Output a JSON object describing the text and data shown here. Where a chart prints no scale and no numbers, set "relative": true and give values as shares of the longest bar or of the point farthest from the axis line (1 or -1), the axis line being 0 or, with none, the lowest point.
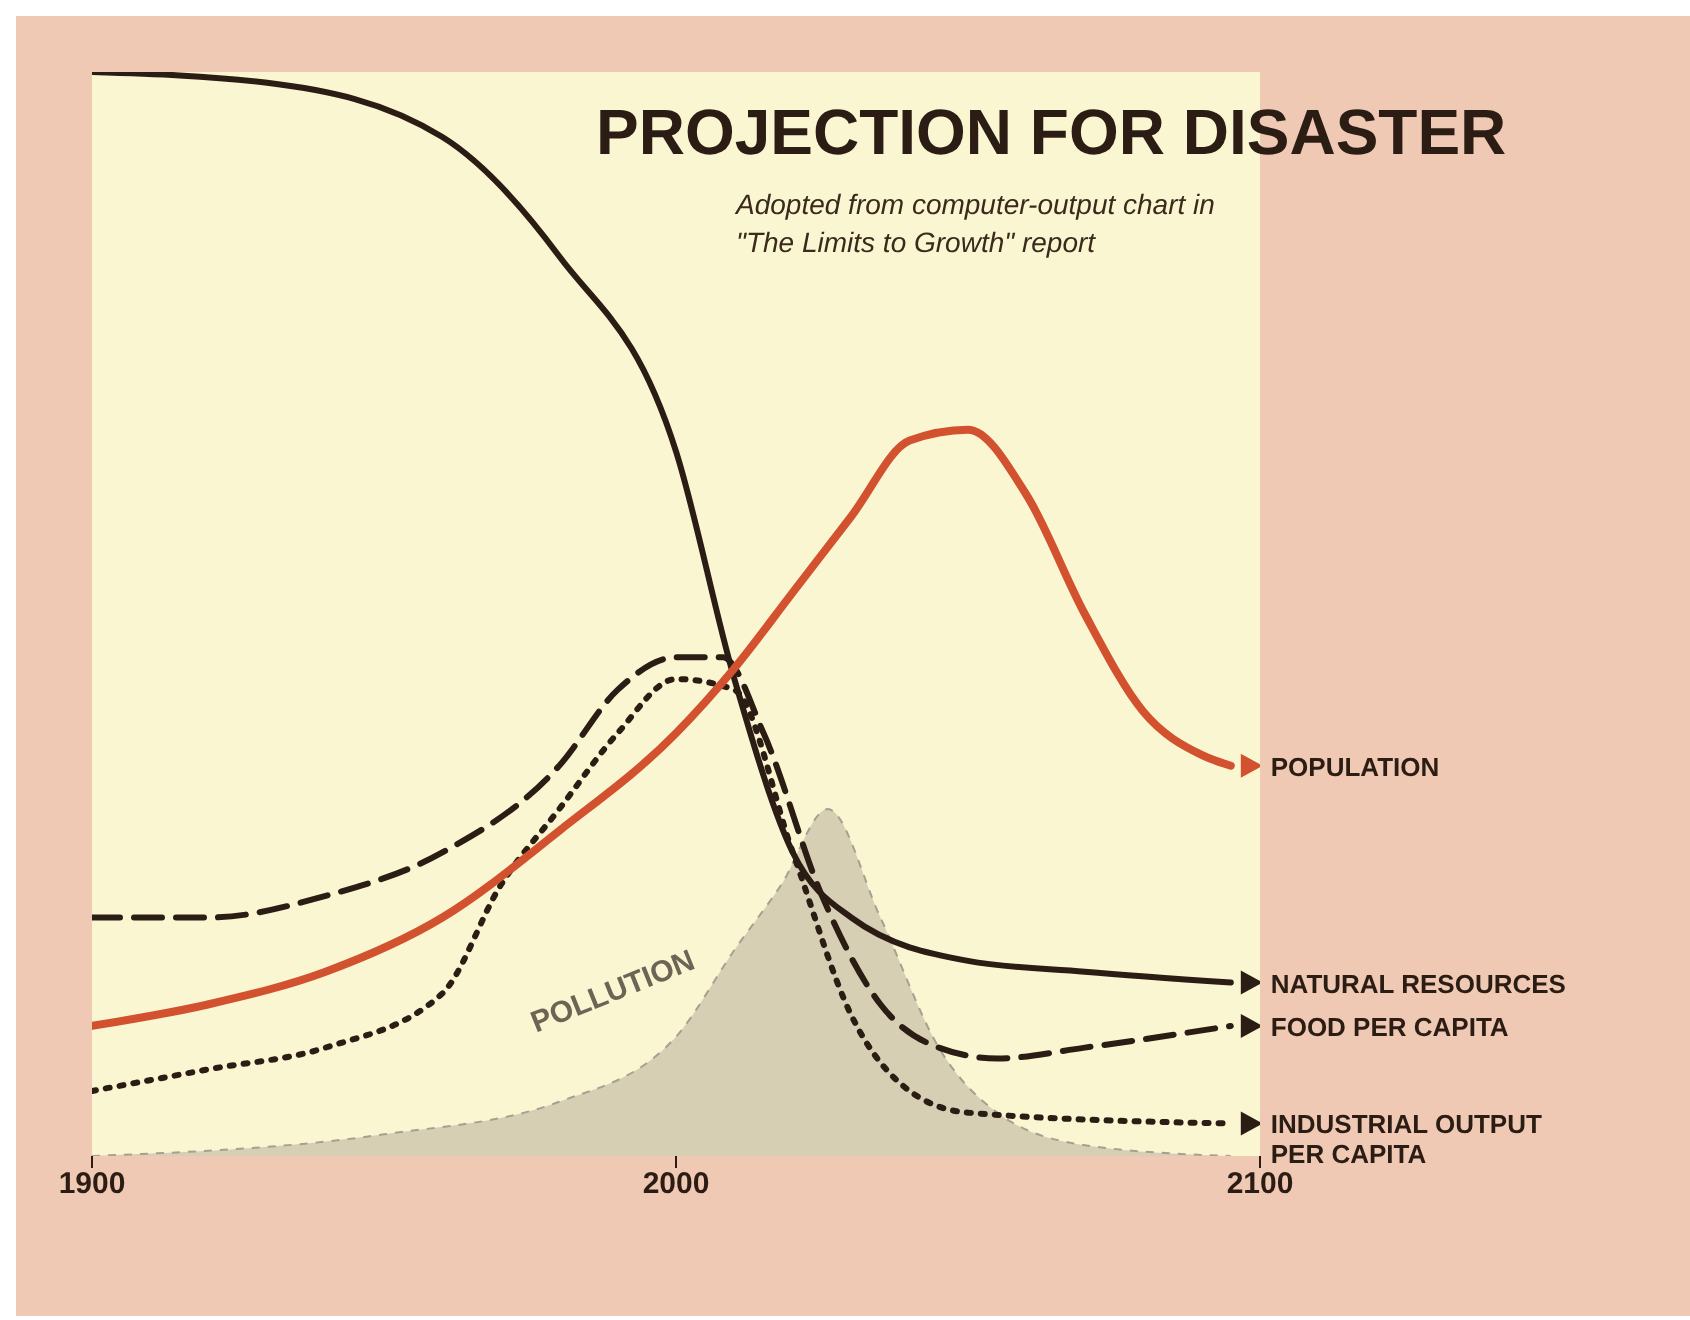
{
  "chart_data": {
    "type": "line",
    "title": "PROJECTION FOR DISASTER",
    "subtitle": "Adopted from computer-output chart in \"The Limits to Growth\" report",
    "relative": true,
    "xlim": [
      1900,
      2100
    ],
    "xticks": [
      1900,
      2000,
      2100
    ],
    "legend": "right",
    "marker": "none",
    "series": [
      {
        "name": "POLLUTION",
        "type": "area",
        "color": "#a89f90",
        "x": [
          1900,
          1950,
          1980,
          2000,
          2010,
          2018,
          2026,
          2035,
          2045,
          2055,
          2070,
          2095
        ],
        "values": [
          0,
          0.02,
          0.05,
          0.11,
          0.19,
          0.25,
          0.32,
          0.22,
          0.1,
          0.04,
          0.01,
          0
        ]
      },
      {
        "name": "NATURAL RESOURCES",
        "color": "#2b1d14",
        "line_style": "solid",
        "x": [
          1900,
          1930,
          1960,
          1980,
          2000,
          2010,
          2020,
          2030,
          2050,
          2070,
          2095
        ],
        "values": [
          1,
          0.99,
          0.94,
          0.83,
          0.65,
          0.44,
          0.28,
          0.22,
          0.18,
          0.17,
          0.16
        ]
      },
      {
        "name": "FOOD PER CAPITA",
        "color": "#2b1d14",
        "line_style": "dashed",
        "x": [
          1900,
          1920,
          1940,
          1960,
          1980,
          1990,
          2000,
          2008,
          2015,
          2025,
          2035,
          2045,
          2055,
          2070,
          2095
        ],
        "values": [
          0.22,
          0.22,
          0.24,
          0.28,
          0.36,
          0.43,
          0.46,
          0.46,
          0.39,
          0.24,
          0.14,
          0.1,
          0.09,
          0.1,
          0.12
        ]
      },
      {
        "name": "INDUSTRIAL OUTPUT PER CAPITA",
        "color": "#2b1d14",
        "line_style": "dotted",
        "x": [
          1900,
          1920,
          1940,
          1960,
          1970,
          1980,
          1990,
          2000,
          2010,
          2020,
          2030,
          2040,
          2050,
          2095
        ],
        "values": [
          0.06,
          0.08,
          0.1,
          0.15,
          0.25,
          0.32,
          0.39,
          0.44,
          0.43,
          0.28,
          0.13,
          0.06,
          0.04,
          0.03
        ]
      },
      {
        "name": "POPULATION",
        "color": "#d2522f",
        "line_style": "solid",
        "x": [
          1900,
          1920,
          1940,
          1960,
          1980,
          2000,
          2010,
          2020,
          2030,
          2040,
          2050,
          2060,
          2070,
          2080,
          2090,
          2095
        ],
        "values": [
          0.12,
          0.14,
          0.17,
          0.22,
          0.3,
          0.39,
          0.45,
          0.52,
          0.59,
          0.66,
          0.67,
          0.61,
          0.5,
          0.41,
          0.37,
          0.36
        ]
      }
    ]
  }
}
